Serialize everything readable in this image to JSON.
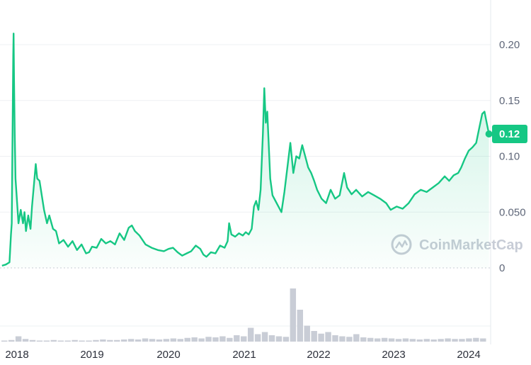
{
  "chart_data": {
    "type": "line",
    "title": "",
    "xlabel": "",
    "ylabel": "",
    "ylim": [
      0,
      0.24
    ],
    "y_ticks": [
      "0.20",
      "0.15",
      "0.10",
      "0.050",
      "0"
    ],
    "y_tick_values": [
      0.2,
      0.15,
      0.1,
      0.05,
      0
    ],
    "x_ticks": [
      "2018",
      "2019",
      "2020",
      "2021",
      "2022",
      "2023",
      "2024"
    ],
    "x_tick_values": [
      2018,
      2019,
      2020,
      2021,
      2022,
      2023,
      2024
    ],
    "xlim": [
      2017.8,
      2024.3
    ],
    "grid": true,
    "current_price_label": "0.12",
    "current_price": 0.12,
    "line_color": "#16c784",
    "watermark": "CoinMarketCap",
    "series": [
      {
        "values": [
          [
            2017.8,
            0.002
          ],
          [
            2017.85,
            0.003
          ],
          [
            2017.9,
            0.005
          ],
          [
            2017.92,
            0.03
          ],
          [
            2017.93,
            0.04
          ],
          [
            2017.95,
            0.19
          ],
          [
            2017.955,
            0.21
          ],
          [
            2017.96,
            0.17
          ],
          [
            2017.97,
            0.12
          ],
          [
            2017.98,
            0.08
          ],
          [
            2018.0,
            0.06
          ],
          [
            2018.02,
            0.04
          ],
          [
            2018.05,
            0.052
          ],
          [
            2018.08,
            0.04
          ],
          [
            2018.1,
            0.05
          ],
          [
            2018.12,
            0.033
          ],
          [
            2018.15,
            0.047
          ],
          [
            2018.18,
            0.035
          ],
          [
            2018.2,
            0.055
          ],
          [
            2018.22,
            0.07
          ],
          [
            2018.25,
            0.093
          ],
          [
            2018.27,
            0.08
          ],
          [
            2018.3,
            0.078
          ],
          [
            2018.33,
            0.065
          ],
          [
            2018.36,
            0.052
          ],
          [
            2018.4,
            0.04
          ],
          [
            2018.43,
            0.047
          ],
          [
            2018.48,
            0.035
          ],
          [
            2018.52,
            0.033
          ],
          [
            2018.56,
            0.022
          ],
          [
            2018.62,
            0.025
          ],
          [
            2018.68,
            0.019
          ],
          [
            2018.74,
            0.024
          ],
          [
            2018.8,
            0.016
          ],
          [
            2018.86,
            0.021
          ],
          [
            2018.92,
            0.013
          ],
          [
            2018.96,
            0.014
          ],
          [
            2019.0,
            0.019
          ],
          [
            2019.06,
            0.018
          ],
          [
            2019.12,
            0.026
          ],
          [
            2019.18,
            0.022
          ],
          [
            2019.24,
            0.024
          ],
          [
            2019.3,
            0.021
          ],
          [
            2019.36,
            0.031
          ],
          [
            2019.42,
            0.025
          ],
          [
            2019.48,
            0.036
          ],
          [
            2019.52,
            0.038
          ],
          [
            2019.56,
            0.033
          ],
          [
            2019.62,
            0.029
          ],
          [
            2019.7,
            0.021
          ],
          [
            2019.78,
            0.018
          ],
          [
            2019.86,
            0.016
          ],
          [
            2019.94,
            0.015
          ],
          [
            2020.0,
            0.017
          ],
          [
            2020.06,
            0.018
          ],
          [
            2020.12,
            0.014
          ],
          [
            2020.18,
            0.011
          ],
          [
            2020.24,
            0.013
          ],
          [
            2020.3,
            0.015
          ],
          [
            2020.36,
            0.02
          ],
          [
            2020.42,
            0.017
          ],
          [
            2020.46,
            0.012
          ],
          [
            2020.5,
            0.01
          ],
          [
            2020.56,
            0.014
          ],
          [
            2020.62,
            0.013
          ],
          [
            2020.68,
            0.02
          ],
          [
            2020.74,
            0.018
          ],
          [
            2020.78,
            0.024
          ],
          [
            2020.8,
            0.04
          ],
          [
            2020.83,
            0.03
          ],
          [
            2020.88,
            0.028
          ],
          [
            2020.93,
            0.031
          ],
          [
            2020.98,
            0.029
          ],
          [
            2021.02,
            0.032
          ],
          [
            2021.06,
            0.03
          ],
          [
            2021.1,
            0.035
          ],
          [
            2021.13,
            0.055
          ],
          [
            2021.16,
            0.06
          ],
          [
            2021.19,
            0.052
          ],
          [
            2021.22,
            0.07
          ],
          [
            2021.25,
            0.12
          ],
          [
            2021.27,
            0.161
          ],
          [
            2021.29,
            0.13
          ],
          [
            2021.31,
            0.14
          ],
          [
            2021.33,
            0.11
          ],
          [
            2021.35,
            0.08
          ],
          [
            2021.38,
            0.065
          ],
          [
            2021.42,
            0.06
          ],
          [
            2021.46,
            0.055
          ],
          [
            2021.5,
            0.05
          ],
          [
            2021.54,
            0.068
          ],
          [
            2021.58,
            0.09
          ],
          [
            2021.62,
            0.112
          ],
          [
            2021.66,
            0.085
          ],
          [
            2021.7,
            0.1
          ],
          [
            2021.74,
            0.098
          ],
          [
            2021.78,
            0.11
          ],
          [
            2021.82,
            0.1
          ],
          [
            2021.86,
            0.09
          ],
          [
            2021.9,
            0.085
          ],
          [
            2021.94,
            0.078
          ],
          [
            2021.98,
            0.07
          ],
          [
            2022.04,
            0.062
          ],
          [
            2022.1,
            0.058
          ],
          [
            2022.16,
            0.07
          ],
          [
            2022.22,
            0.062
          ],
          [
            2022.28,
            0.065
          ],
          [
            2022.34,
            0.085
          ],
          [
            2022.38,
            0.072
          ],
          [
            2022.44,
            0.066
          ],
          [
            2022.5,
            0.07
          ],
          [
            2022.58,
            0.064
          ],
          [
            2022.66,
            0.068
          ],
          [
            2022.74,
            0.065
          ],
          [
            2022.82,
            0.062
          ],
          [
            2022.9,
            0.058
          ],
          [
            2022.96,
            0.052
          ],
          [
            2023.04,
            0.055
          ],
          [
            2023.12,
            0.053
          ],
          [
            2023.2,
            0.058
          ],
          [
            2023.28,
            0.066
          ],
          [
            2023.36,
            0.07
          ],
          [
            2023.44,
            0.068
          ],
          [
            2023.52,
            0.072
          ],
          [
            2023.6,
            0.076
          ],
          [
            2023.68,
            0.082
          ],
          [
            2023.74,
            0.078
          ],
          [
            2023.8,
            0.083
          ],
          [
            2023.86,
            0.085
          ],
          [
            2023.9,
            0.09
          ],
          [
            2023.95,
            0.098
          ],
          [
            2024.0,
            0.105
          ],
          [
            2024.05,
            0.108
          ],
          [
            2024.1,
            0.112
          ],
          [
            2024.14,
            0.125
          ],
          [
            2024.18,
            0.138
          ],
          [
            2024.21,
            0.14
          ],
          [
            2024.24,
            0.13
          ],
          [
            2024.27,
            0.12
          ]
        ]
      }
    ],
    "volume": [
      0.02,
      0.03,
      0.1,
      0.05,
      0.03,
      0.02,
      0.02,
      0.03,
      0.02,
      0.02,
      0.03,
      0.02,
      0.02,
      0.03,
      0.04,
      0.03,
      0.03,
      0.04,
      0.05,
      0.04,
      0.06,
      0.05,
      0.04,
      0.05,
      0.06,
      0.05,
      0.07,
      0.08,
      0.06,
      0.09,
      0.08,
      0.1,
      0.07,
      0.12,
      0.1,
      0.26,
      0.14,
      0.18,
      0.12,
      0.1,
      0.09,
      1.0,
      0.6,
      0.3,
      0.2,
      0.15,
      0.18,
      0.12,
      0.1,
      0.09,
      0.14,
      0.08,
      0.07,
      0.06,
      0.07,
      0.06,
      0.05,
      0.06,
      0.05,
      0.04,
      0.05,
      0.04,
      0.05,
      0.06,
      0.05,
      0.05,
      0.06,
      0.07,
      0.06
    ]
  }
}
